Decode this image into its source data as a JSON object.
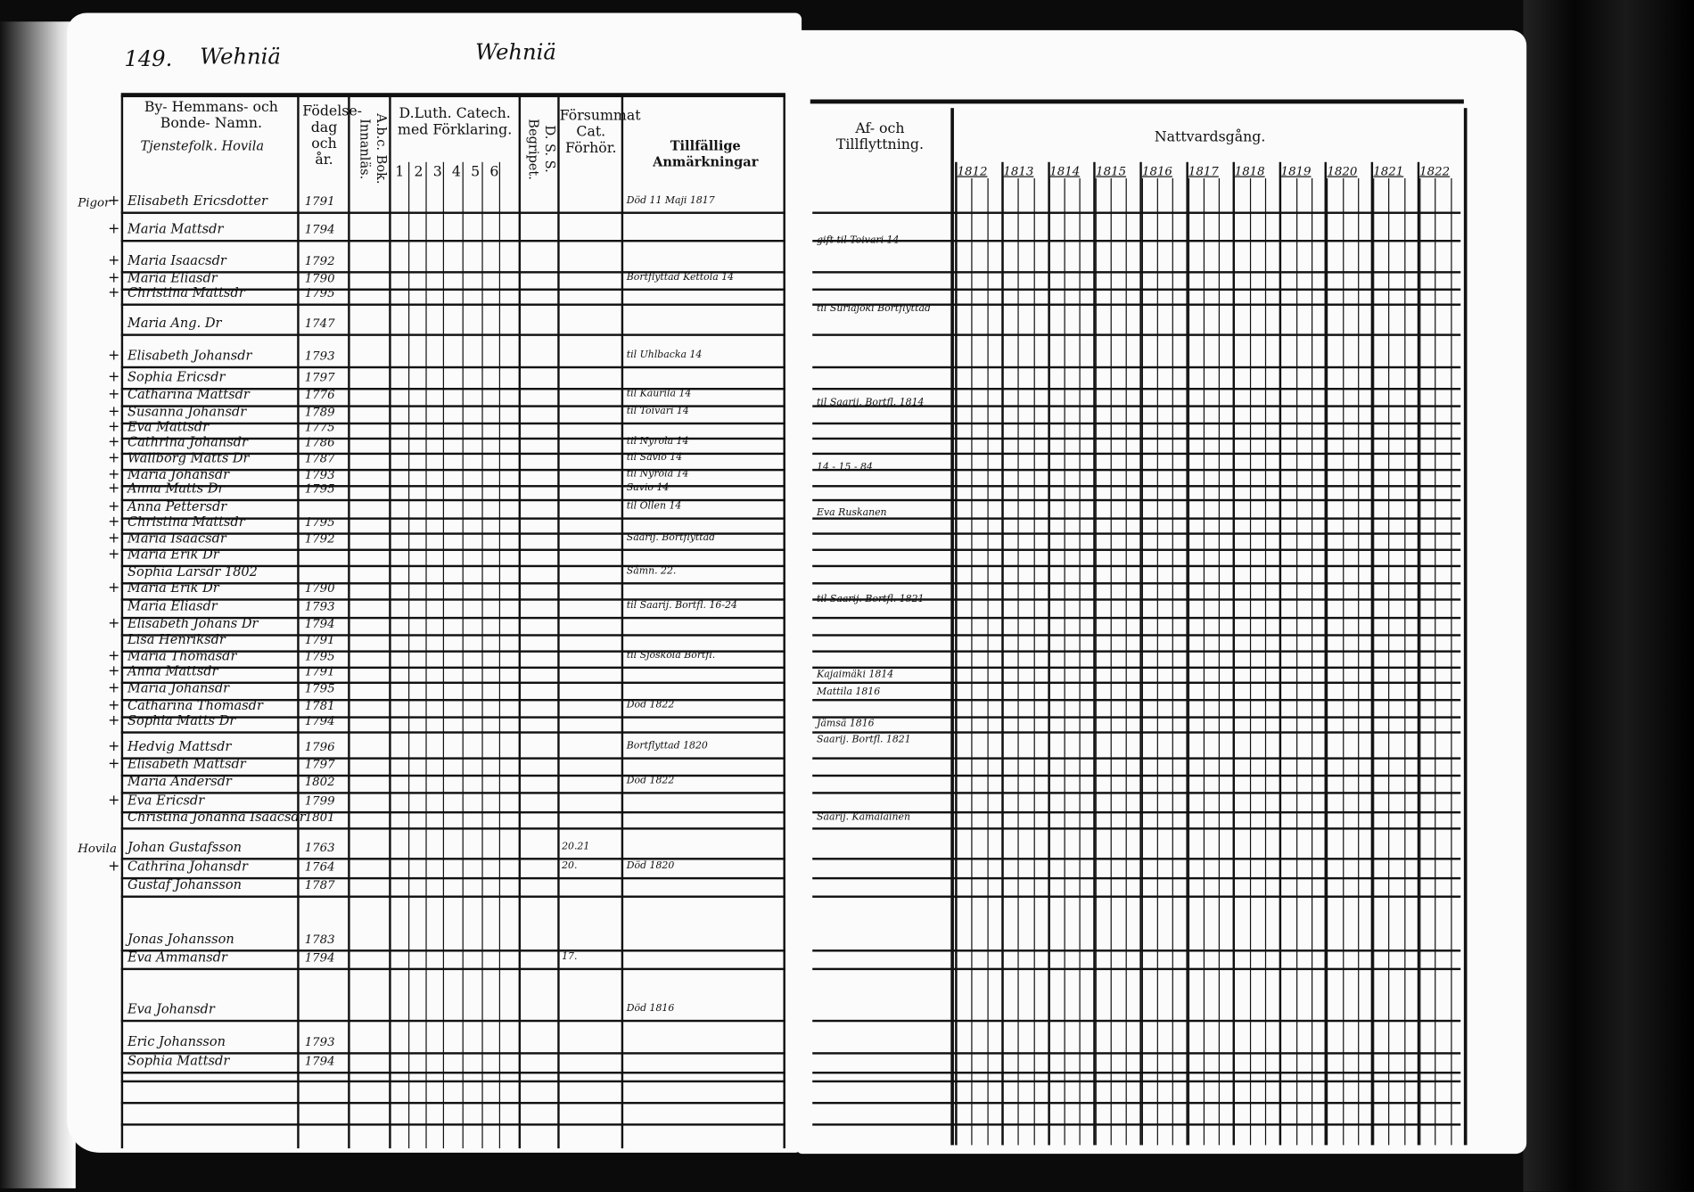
{
  "header": {
    "page_number": "149.",
    "left_title": "Wehniä",
    "center_title": "Wehniä"
  },
  "columns": {
    "name": "By- Hemmans- och Bonde- Namn.",
    "name_sub": "Tjenstefolk. Hovila",
    "birth": "Födelse-dag och år.",
    "abc": "A.b.c. Bok. Innanläs.",
    "catechism": "D.Luth. Catech. med Förklaring.",
    "catechism_parts": [
      "1",
      "2",
      "3",
      "4",
      "5",
      "6"
    ],
    "dss": "D. S. S. Begripet.",
    "forsummat": "Försummat Cat. Förhör.",
    "notes": "Tillfällige Anmärkningar",
    "moving": "Af- och Tillflyttning.",
    "communion": "Nattvardsgång.",
    "communion_years": [
      "1812",
      "1813",
      "1814",
      "1815",
      "1816",
      "1817",
      "1818",
      "1819",
      "1820",
      "1821",
      "1822"
    ]
  },
  "rows": [
    {
      "margin": "Pigor",
      "mark": "+",
      "name": "Elisabeth Ericsdotter",
      "year": "1791",
      "note": "Död 11 Maji 1817"
    },
    {
      "mark": "+",
      "name": "Maria Mattsdr",
      "year": "1794"
    },
    {
      "mark": "+",
      "name": "Maria Isaacsdr",
      "year": "1792"
    },
    {
      "mark": "+",
      "name": "Maria Eliasdr",
      "year": "1790",
      "note": "Bortflyttad Kettola 14"
    },
    {
      "mark": "+",
      "name": "Christina Mattsdr",
      "year": "1795"
    },
    {
      "name": "Maria Ang. Dr",
      "year": "1747"
    },
    {
      "mark": "+",
      "name": "Elisabeth Johansdr",
      "year": "1793",
      "note": "til Uhlbacka 14"
    },
    {
      "mark": "+",
      "name": "Sophia Ericsdr",
      "year": "1797"
    },
    {
      "mark": "+",
      "name": "Catharina Mattsdr",
      "year": "1776",
      "note": "til Kaurila 14"
    },
    {
      "mark": "+",
      "name": "Susanna Johansdr",
      "year": "1789",
      "note": "til Toivari 14"
    },
    {
      "mark": "+",
      "name": "Eva Mattsdr",
      "year": "1775"
    },
    {
      "mark": "+",
      "name": "Cathrina Johansdr",
      "year": "1786",
      "note": "til Nyrola 14"
    },
    {
      "mark": "+",
      "name": "Wallborg Matts Dr",
      "year": "1787",
      "note": "til Savio 14"
    },
    {
      "mark": "+",
      "name": "Maria Johansdr",
      "year": "1793",
      "note": "til Nyrola 14"
    },
    {
      "mark": "+",
      "name": "Anna Matts Dr",
      "year": "1795",
      "note": "Savio 14"
    },
    {
      "mark": "+",
      "name": "Anna Pettersdr",
      "year": "",
      "note": "til Ollen 14"
    },
    {
      "mark": "+",
      "name": "Christina Mattsdr",
      "year": "1795"
    },
    {
      "mark": "+",
      "name": "Maria Isaacsdr",
      "year": "1792",
      "note": "Saarij. Bortflyttad"
    },
    {
      "mark": "+",
      "name": "Maria Erik Dr",
      "year": ""
    },
    {
      "name": "Sophia Larsdr 1802",
      "year": "",
      "note": "Såmn. 22."
    },
    {
      "mark": "+",
      "name": "Maria Erik Dr",
      "year": "1790"
    },
    {
      "name": "Maria Eliasdr",
      "year": "1793",
      "note": "til Saarij. Bortfl. 16-24"
    },
    {
      "mark": "+",
      "name": "Elisabeth Johans Dr",
      "year": "1794"
    },
    {
      "name": "Lisa Henriksdr",
      "year": "1791"
    },
    {
      "mark": "+",
      "name": "Maria Thomasdr",
      "year": "1795",
      "note": "til Sjöskola Bortfl."
    },
    {
      "mark": "+",
      "name": "Anna Mattsdr",
      "year": "1791"
    },
    {
      "mark": "+",
      "name": "Maria Johansdr",
      "year": "1795"
    },
    {
      "mark": "+",
      "name": "Catharina Thomasdr",
      "year": "1781",
      "note": "Död 1822"
    },
    {
      "mark": "+",
      "name": "Sophia Matts Dr",
      "year": "1794"
    },
    {
      "mark": "+",
      "name": "Hedvig Mattsdr",
      "year": "1796",
      "note": "Bortflyttad 1820"
    },
    {
      "mark": "+",
      "name": "Elisabeth Mattsdr",
      "year": "1797"
    },
    {
      "name": "Maria Andersdr",
      "year": "1802",
      "note": "Död 1822"
    },
    {
      "mark": "+",
      "name": "Eva Ericsdr",
      "year": "1799"
    },
    {
      "name": "Christina Johanna Isaacsdr",
      "year": "1801"
    },
    {
      "margin": "Hovila",
      "name": "Johan Gustafsson",
      "year": "1763",
      "forsummat": "20.21"
    },
    {
      "mark": "+",
      "name": "Cathrina Johansdr",
      "year": "1764",
      "forsummat": "20.",
      "note": "Död 1820"
    },
    {
      "name": "Gustaf Johansson",
      "year": "1787"
    },
    {
      "name": "Jonas Johansson",
      "year": "1783"
    },
    {
      "name": "Eva Ammansdr",
      "year": "1794",
      "forsummat": "17."
    },
    {
      "name": "Eva Johansdr",
      "year": "",
      "note": "Död 1816"
    },
    {
      "name": "Eric Johansson",
      "year": "1793"
    },
    {
      "name": "Sophia Mattsdr",
      "year": "1794"
    }
  ],
  "moving_notes": [
    "gift til Toivari 14",
    "til Suriajoki Bortflyttad",
    "til Saarij. Bortfl. 1814",
    "14 - 15 - 84",
    "Eva Ruskanen",
    "til Saarij. Bortfl. 1821",
    "Kajaimäki 1814",
    "Mattila 1816",
    "Jämsä 1816",
    "Saarij. Bortfl. 1821",
    "Saarij. Kämäläinen"
  ]
}
